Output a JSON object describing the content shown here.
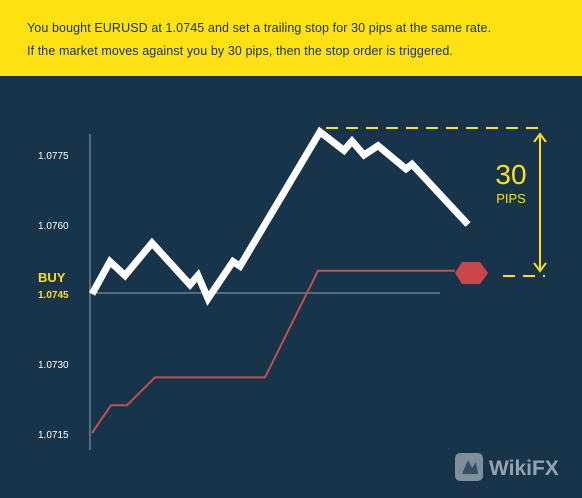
{
  "banner": {
    "line1": "You bought EURUSD at 1.0745 and set a trailing stop for 30 pips at the same rate.",
    "line2": "If the market moves against you by 30 pips, then the stop order is triggered."
  },
  "chart_data": {
    "type": "line",
    "y_ticks": [
      "1.0775",
      "1.0760",
      "1.0745",
      "1.0730",
      "1.0715"
    ],
    "ylim": [
      1.0715,
      1.0775
    ],
    "buy": {
      "label": "BUY",
      "price": "1.0745"
    },
    "pips": {
      "number": "30",
      "unit": "PIPS"
    },
    "series": [
      {
        "role": "price",
        "color": "#ffffff",
        "values": [
          1.0745,
          1.0752,
          1.0749,
          1.0756,
          1.0747,
          1.0749,
          1.0744,
          1.0752,
          1.0751,
          1.078,
          1.0776,
          1.0778,
          1.0775,
          1.0777,
          1.0772,
          1.0773,
          1.076
        ]
      },
      {
        "role": "trailing-stop",
        "color": "#c0504d",
        "values": [
          1.0715,
          1.0721,
          1.0721,
          1.0727,
          1.0727,
          1.075,
          1.075
        ]
      }
    ]
  },
  "watermark": {
    "text": "WikiFX"
  },
  "colors": {
    "background": "#17344a",
    "banner": "#fde113",
    "accent": "#fde113",
    "stop_marker": "#c9474a"
  }
}
